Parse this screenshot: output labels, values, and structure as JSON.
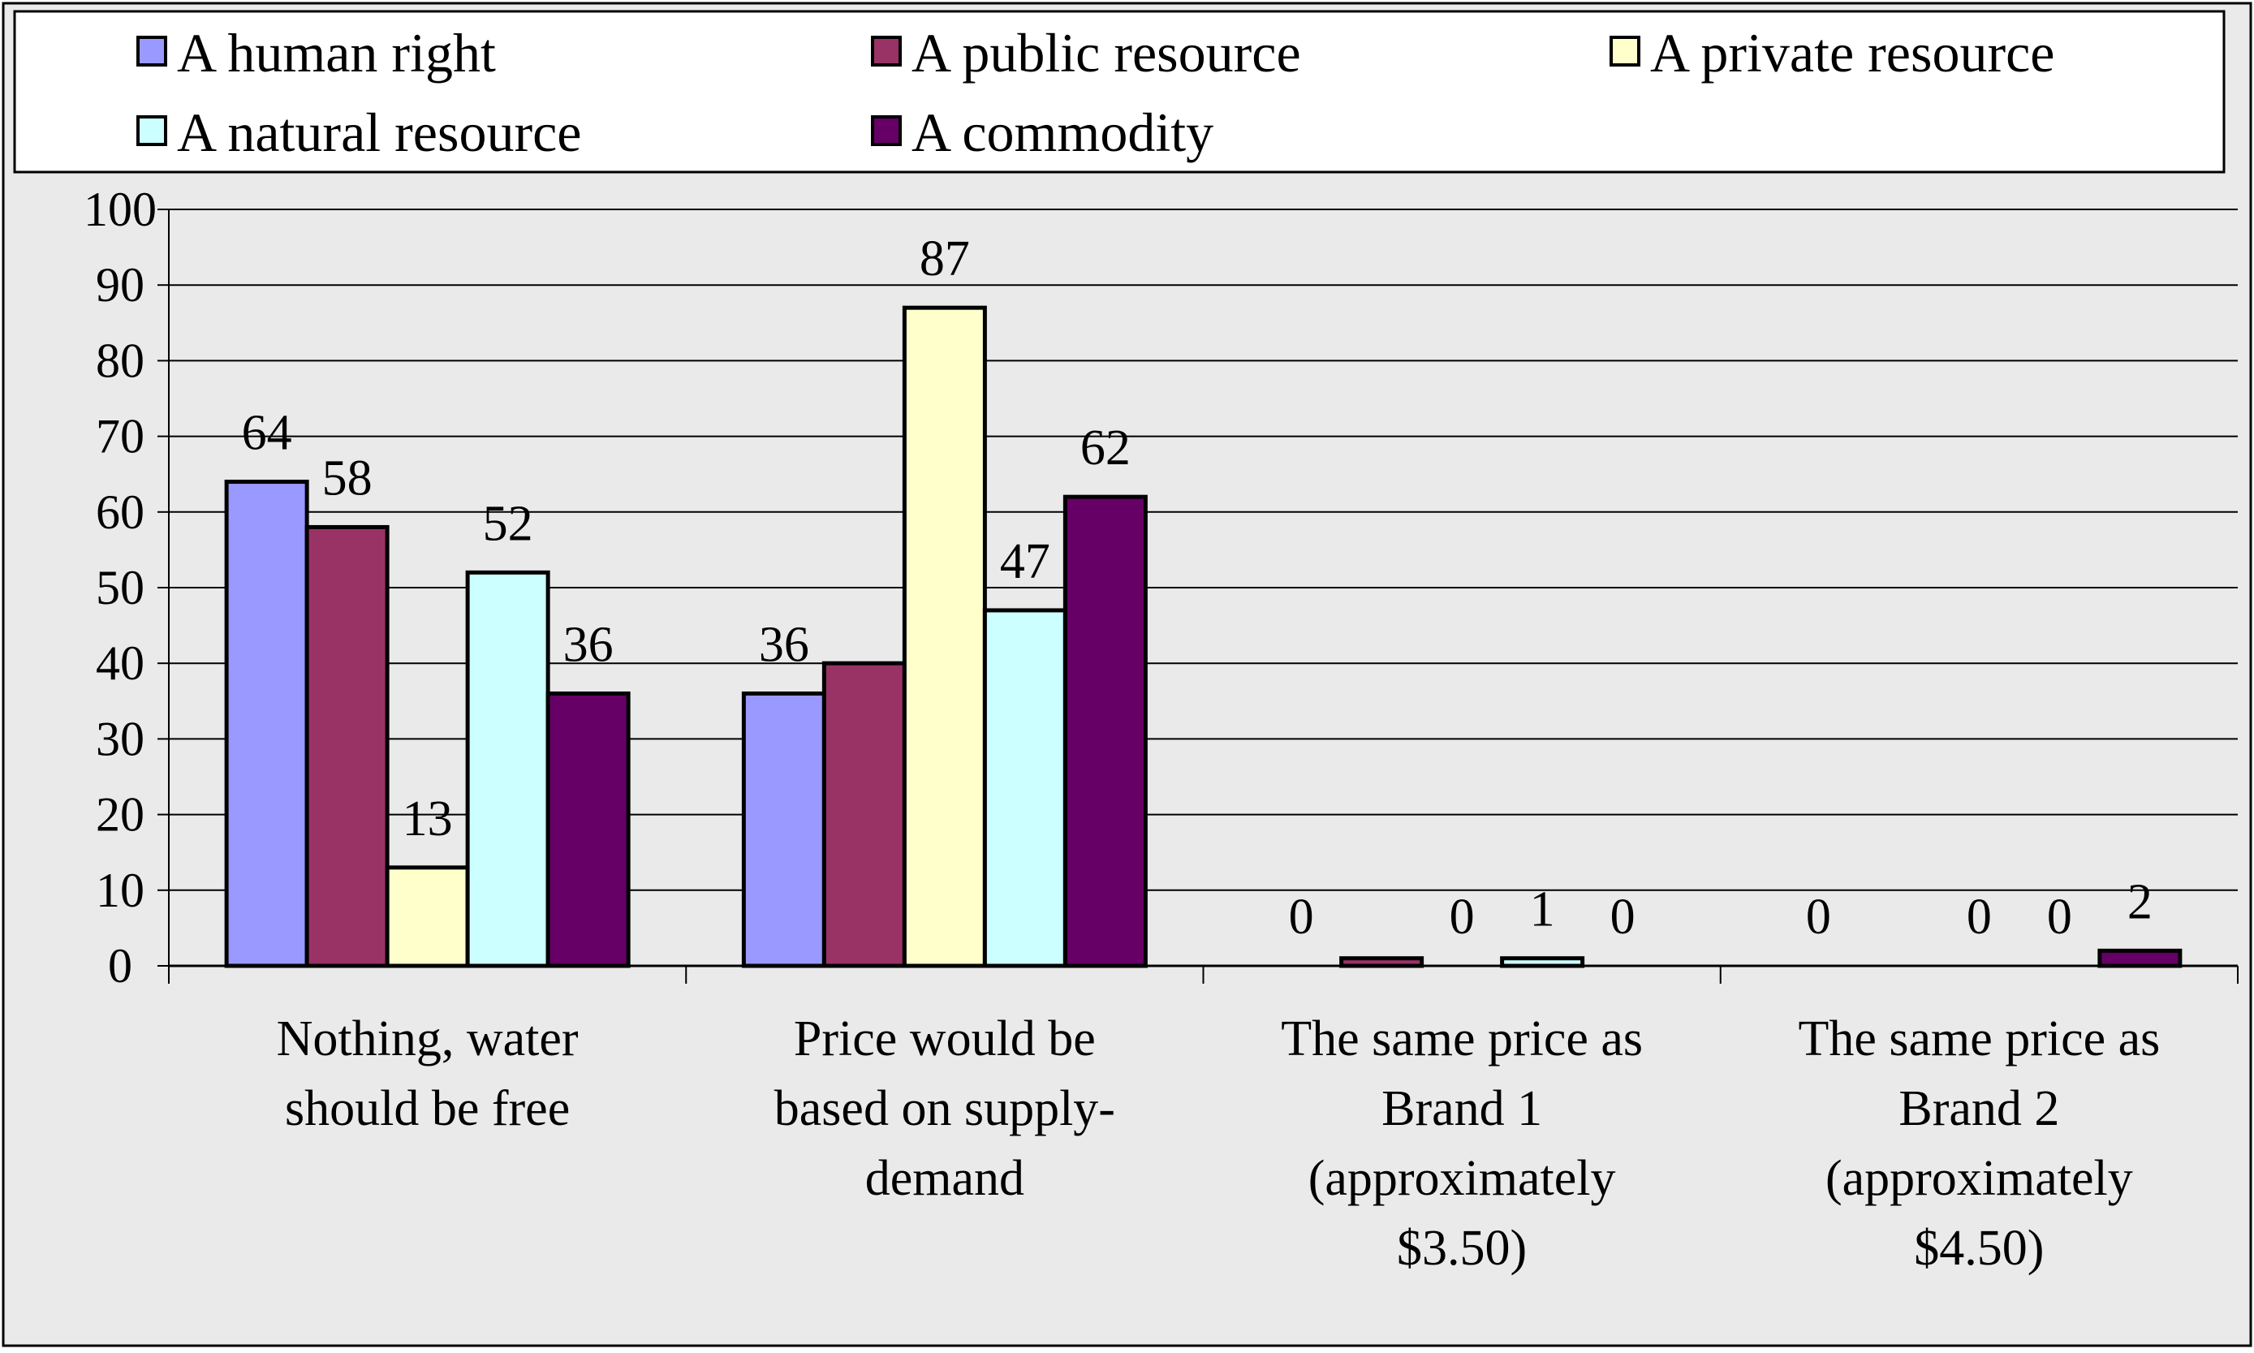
{
  "chart_data": {
    "type": "bar",
    "categories": [
      [
        "Nothing, water",
        "should be free"
      ],
      [
        "Price would be",
        "based on supply-",
        "demand"
      ],
      [
        "The same price as",
        "Brand 1",
        "(approximately",
        "$3.50)"
      ],
      [
        "The same price as",
        "Brand 2",
        "(approximately",
        "$4.50)"
      ]
    ],
    "series": [
      {
        "name": "A human right",
        "values": [
          64,
          36,
          0,
          0
        ],
        "color": "#9999ff"
      },
      {
        "name": "A public resource",
        "values": [
          58,
          40,
          1,
          0
        ],
        "color": "#993366"
      },
      {
        "name": "A private resource",
        "values": [
          13,
          87,
          0,
          0
        ],
        "color": "#ffffcc"
      },
      {
        "name": "A natural resource",
        "values": [
          52,
          47,
          1,
          0
        ],
        "color": "#ccffff"
      },
      {
        "name": "A commodity",
        "values": [
          36,
          62,
          0,
          2
        ],
        "color": "#660066"
      }
    ],
    "data_labels": [
      [
        "64",
        "58",
        "13",
        "52",
        "36"
      ],
      [
        "36",
        "",
        "87",
        "47",
        "62"
      ],
      [
        "0",
        "",
        "0",
        "1",
        "0"
      ],
      [
        "0",
        "",
        "0",
        "0",
        "2"
      ]
    ],
    "ylim": [
      0,
      100
    ],
    "y_ticks": [
      "0",
      "10",
      "20",
      "30",
      "40",
      "50",
      "60",
      "70",
      "80",
      "90",
      "100"
    ],
    "grid": true,
    "legend_position": "top",
    "plot_background": "#eaeaea"
  }
}
